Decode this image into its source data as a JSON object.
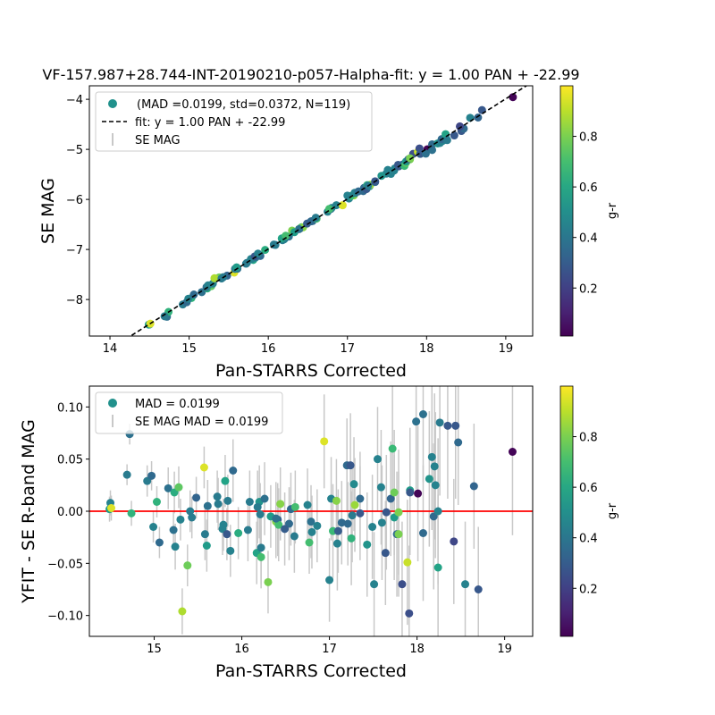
{
  "chart_data": [
    {
      "type": "scatter",
      "title": "VF-157.987+28.744-INT-20190210-p057-Halpha-fit: y = 1.00 PAN + -22.99",
      "xlabel": "Pan-STARRS Corrected",
      "ylabel": "SE MAG",
      "xlim": [
        13.74,
        19.34
      ],
      "ylim": [
        -8.73,
        -3.73
      ],
      "y_inverted": false,
      "xticks": [
        "14",
        "15",
        "16",
        "17",
        "18",
        "19"
      ],
      "xtick_values": [
        14,
        15,
        16,
        17,
        18,
        19
      ],
      "yticks": [
        "−4",
        "−5",
        "−6",
        "−7",
        "−8"
      ],
      "ytick_values": [
        -4,
        -5,
        -6,
        -7,
        -8
      ],
      "fit": {
        "slope": 1.0,
        "intercept": -22.99
      },
      "legend": {
        "placement": "upper-left",
        "entries": [
          "(MAD =0.0199, std=0.0372, N=119)",
          "fit: y = 1.00 PAN + -22.99",
          "SE MAG"
        ]
      },
      "colorbar": {
        "label": "g-r",
        "range": [
          0.01,
          1.0
        ],
        "ticks": [
          "0.2",
          "0.4",
          "0.6",
          "0.8"
        ],
        "tick_values": [
          0.2,
          0.4,
          0.6,
          0.8
        ]
      }
    },
    {
      "type": "scatter",
      "xlabel": "Pan-STARRS Corrected",
      "ylabel": "YFIT - SE R-band MAG",
      "xlim": [
        14.26,
        19.32
      ],
      "ylim": [
        -0.12,
        0.12
      ],
      "xticks": [
        "15",
        "16",
        "17",
        "18",
        "19"
      ],
      "xtick_values": [
        15,
        16,
        17,
        18,
        19
      ],
      "yticks": [
        "0.10",
        "0.05",
        "0.00",
        "−0.05",
        "−0.10"
      ],
      "ytick_values": [
        0.1,
        0.05,
        0.0,
        -0.05,
        -0.1
      ],
      "hline": {
        "y": 0,
        "color": "#ff0000"
      },
      "legend": {
        "placement": "upper-left",
        "entries": [
          "MAD = 0.0199",
          "SE MAG MAD = 0.0199"
        ]
      },
      "colorbar": {
        "label": "g-r",
        "range": [
          0.01,
          1.0
        ],
        "ticks": [
          "0.2",
          "0.4",
          "0.6",
          "0.8"
        ],
        "tick_values": [
          0.2,
          0.4,
          0.6,
          0.8
        ]
      }
    }
  ],
  "points_fields": [
    "pan_starrs_corrected",
    "yfit_minus_se",
    "g_r",
    "err"
  ],
  "points": [
    [
      14.5,
      0.008,
      0.45,
      0.012
    ],
    [
      14.49,
      0.002,
      0.55,
      0.012
    ],
    [
      14.51,
      0.003,
      0.95,
      0.012
    ],
    [
      14.72,
      0.074,
      0.38,
      0.01
    ],
    [
      14.74,
      -0.002,
      0.65,
      0.012
    ],
    [
      14.69,
      0.035,
      0.42,
      0.01
    ],
    [
      14.92,
      0.029,
      0.42,
      0.015
    ],
    [
      14.97,
      0.034,
      0.35,
      0.014
    ],
    [
      15.03,
      0.009,
      0.65,
      0.015
    ],
    [
      14.99,
      -0.015,
      0.45,
      0.015
    ],
    [
      15.06,
      -0.03,
      0.35,
      0.015
    ],
    [
      15.16,
      0.022,
      0.38,
      0.02
    ],
    [
      15.23,
      0.018,
      0.62,
      0.02
    ],
    [
      15.28,
      0.023,
      0.75,
      0.02
    ],
    [
      15.22,
      -0.018,
      0.38,
      0.018
    ],
    [
      15.3,
      -0.008,
      0.45,
      0.02
    ],
    [
      15.24,
      -0.034,
      0.45,
      0.022
    ],
    [
      15.38,
      -0.052,
      0.78,
      0.02
    ],
    [
      15.32,
      -0.096,
      0.88,
      0.022
    ],
    [
      15.48,
      0.013,
      0.33,
      0.02
    ],
    [
      15.41,
      0.0,
      0.42,
      0.02
    ],
    [
      15.43,
      -0.006,
      0.42,
      0.02
    ],
    [
      15.57,
      0.042,
      0.95,
      0.02
    ],
    [
      15.61,
      0.005,
      0.38,
      0.025
    ],
    [
      15.58,
      -0.022,
      0.42,
      0.025
    ],
    [
      15.6,
      -0.033,
      0.55,
      0.025
    ],
    [
      15.72,
      0.014,
      0.42,
      0.025
    ],
    [
      15.73,
      0.007,
      0.42,
      0.025
    ],
    [
      15.81,
      0.029,
      0.58,
      0.025
    ],
    [
      15.84,
      0.01,
      0.42,
      0.025
    ],
    [
      15.9,
      0.039,
      0.35,
      0.03
    ],
    [
      15.79,
      -0.013,
      0.45,
      0.025
    ],
    [
      15.78,
      -0.017,
      0.45,
      0.025
    ],
    [
      15.83,
      -0.022,
      0.28,
      0.025
    ],
    [
      15.87,
      -0.038,
      0.45,
      0.025
    ],
    [
      15.96,
      -0.021,
      0.62,
      0.025
    ],
    [
      16.07,
      -0.018,
      0.42,
      0.03
    ],
    [
      16.09,
      0.009,
      0.42,
      0.03
    ],
    [
      16.2,
      0.009,
      0.52,
      0.035
    ],
    [
      16.18,
      0.004,
      0.42,
      0.035
    ],
    [
      16.21,
      -0.003,
      0.42,
      0.03
    ],
    [
      16.26,
      0.012,
      0.38,
      0.035
    ],
    [
      16.17,
      -0.04,
      0.58,
      0.03
    ],
    [
      16.22,
      -0.035,
      0.42,
      0.035
    ],
    [
      16.22,
      -0.044,
      0.7,
      0.03
    ],
    [
      16.3,
      -0.068,
      0.8,
      0.03
    ],
    [
      16.33,
      -0.005,
      0.55,
      0.03
    ],
    [
      16.39,
      -0.01,
      0.82,
      0.035
    ],
    [
      16.41,
      -0.008,
      0.3,
      0.035
    ],
    [
      16.42,
      -0.013,
      0.7,
      0.035
    ],
    [
      16.44,
      0.007,
      0.82,
      0.035
    ],
    [
      16.54,
      -0.012,
      0.35,
      0.035
    ],
    [
      16.49,
      -0.017,
      0.3,
      0.035
    ],
    [
      16.56,
      0.002,
      0.35,
      0.035
    ],
    [
      16.61,
      0.004,
      0.7,
      0.035
    ],
    [
      16.6,
      -0.024,
      0.42,
      0.035
    ],
    [
      16.75,
      0.006,
      0.45,
      0.035
    ],
    [
      16.79,
      -0.01,
      0.38,
      0.035
    ],
    [
      16.8,
      -0.02,
      0.45,
      0.035
    ],
    [
      16.86,
      -0.014,
      0.45,
      0.035
    ],
    [
      16.77,
      -0.03,
      0.7,
      0.03
    ],
    [
      16.94,
      0.067,
      0.95,
      0.045
    ],
    [
      17.02,
      0.012,
      0.45,
      0.04
    ],
    [
      17.08,
      0.01,
      0.82,
      0.04
    ],
    [
      17.04,
      -0.019,
      0.68,
      0.045
    ],
    [
      17.1,
      -0.019,
      0.3,
      0.04
    ],
    [
      17.09,
      -0.031,
      0.45,
      0.045
    ],
    [
      17.0,
      -0.066,
      0.45,
      0.04
    ],
    [
      17.14,
      -0.011,
      0.35,
      0.04
    ],
    [
      17.21,
      -0.012,
      0.35,
      0.04
    ],
    [
      17.2,
      0.044,
      0.35,
      0.045
    ],
    [
      17.24,
      0.044,
      0.28,
      0.05
    ],
    [
      17.28,
      0.026,
      0.48,
      0.045
    ],
    [
      17.29,
      0.006,
      0.85,
      0.045
    ],
    [
      17.25,
      -0.026,
      0.65,
      0.045
    ],
    [
      17.26,
      -0.004,
      0.42,
      0.045
    ],
    [
      17.35,
      0.012,
      0.35,
      0.045
    ],
    [
      17.35,
      -0.002,
      0.28,
      0.045
    ],
    [
      17.55,
      0.05,
      0.45,
      0.05
    ],
    [
      17.59,
      0.023,
      0.45,
      0.055
    ],
    [
      17.49,
      -0.015,
      0.45,
      0.05
    ],
    [
      17.43,
      -0.032,
      0.52,
      0.05
    ],
    [
      17.51,
      -0.07,
      0.45,
      0.05
    ],
    [
      17.6,
      -0.011,
      0.45,
      0.055
    ],
    [
      17.65,
      -0.001,
      0.28,
      0.055
    ],
    [
      17.64,
      -0.04,
      0.28,
      0.05
    ],
    [
      17.7,
      0.012,
      0.33,
      0.055
    ],
    [
      17.72,
      0.06,
      0.68,
      0.06
    ],
    [
      17.74,
      0.018,
      0.78,
      0.06
    ],
    [
      17.74,
      -0.006,
      0.55,
      0.06
    ],
    [
      17.79,
      -0.001,
      0.8,
      0.06
    ],
    [
      17.77,
      -0.022,
      0.35,
      0.06
    ],
    [
      17.83,
      -0.07,
      0.25,
      0.06
    ],
    [
      17.89,
      -0.049,
      0.92,
      0.06
    ],
    [
      17.91,
      -0.098,
      0.25,
      0.065
    ],
    [
      17.92,
      0.02,
      0.55,
      0.06
    ],
    [
      17.92,
      0.018,
      0.28,
      0.06
    ],
    [
      18.01,
      0.017,
      0.02,
      0.065
    ],
    [
      17.99,
      0.086,
      0.38,
      0.065
    ],
    [
      18.07,
      0.093,
      0.38,
      0.065
    ],
    [
      18.07,
      -0.021,
      0.35,
      0.065
    ],
    [
      18.14,
      0.031,
      0.52,
      0.065
    ],
    [
      18.17,
      0.052,
      0.45,
      0.07
    ],
    [
      18.2,
      0.043,
      0.45,
      0.07
    ],
    [
      18.21,
      0.025,
      0.45,
      0.07
    ],
    [
      18.19,
      -0.005,
      0.35,
      0.07
    ],
    [
      18.24,
      0.0,
      0.45,
      0.07
    ],
    [
      18.24,
      -0.054,
      0.58,
      0.07
    ],
    [
      18.26,
      0.085,
      0.42,
      0.07
    ],
    [
      18.35,
      0.082,
      0.28,
      0.07
    ],
    [
      18.44,
      0.082,
      0.28,
      0.07
    ],
    [
      18.47,
      0.066,
      0.35,
      0.06
    ],
    [
      18.42,
      -0.029,
      0.22,
      0.06
    ],
    [
      18.55,
      -0.07,
      0.45,
      0.06
    ],
    [
      18.65,
      0.024,
      0.33,
      0.06
    ],
    [
      18.7,
      -0.075,
      0.28,
      0.06
    ],
    [
      19.09,
      0.057,
      0.02,
      0.08
    ],
    [
      17.79,
      -0.022,
      0.8,
      0.06
    ],
    [
      16.39,
      -0.007,
      0.38,
      0.035
    ]
  ]
}
